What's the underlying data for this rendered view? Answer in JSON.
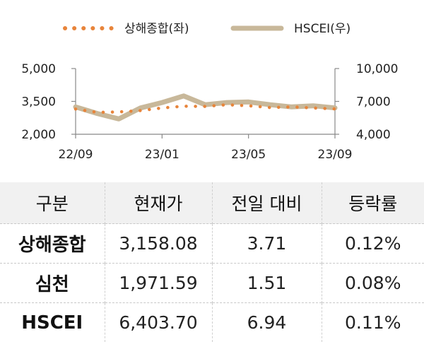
{
  "chart_data": {
    "type": "line",
    "legend": {
      "placement": "top-center"
    },
    "x": [
      "22/09",
      "22/10",
      "22/11",
      "22/12",
      "23/01",
      "23/02",
      "23/03",
      "23/04",
      "23/05",
      "23/06",
      "23/07",
      "23/08",
      "23/09"
    ],
    "x_ticks": [
      "22/09",
      "23/01",
      "23/05",
      "23/09"
    ],
    "y_left": {
      "ylim": [
        2000,
        5000
      ],
      "ticks": [
        "2,000",
        "3,500",
        "5,000"
      ]
    },
    "y_right": {
      "ylim": [
        4000,
        10000
      ],
      "ticks": [
        "4,000",
        "7,000",
        "10,000"
      ]
    },
    "grid": false,
    "series": [
      {
        "name": "상해종합(좌)",
        "axis": "left",
        "style": "dotted",
        "color": "#e8843a",
        "values": [
          3150,
          3000,
          3020,
          3080,
          3200,
          3280,
          3270,
          3350,
          3300,
          3220,
          3250,
          3200,
          3158
        ]
      },
      {
        "name": "HSCEI(우)",
        "axis": "right",
        "style": "solid",
        "color": "#c8b89a",
        "values": [
          6500,
          5900,
          5400,
          6400,
          6900,
          7500,
          6700,
          6900,
          6950,
          6700,
          6500,
          6600,
          6404
        ]
      }
    ]
  },
  "table": {
    "headers": [
      "구분",
      "현재가",
      "전일 대비",
      "등락률"
    ],
    "rows": [
      {
        "name": "상해종합",
        "price": "3,158.08",
        "change": "3.71",
        "rate": "0.12%"
      },
      {
        "name": "심천",
        "price": "1,971.59",
        "change": "1.51",
        "rate": "0.08%"
      },
      {
        "name": "HSCEI",
        "price": "6,403.70",
        "change": "6.94",
        "rate": "0.11%"
      }
    ]
  }
}
